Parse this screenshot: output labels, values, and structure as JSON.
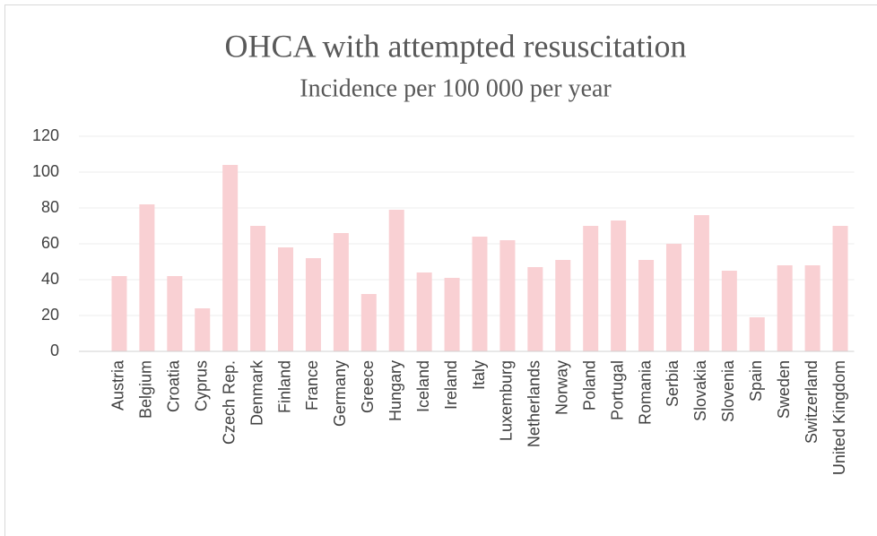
{
  "chart_data": {
    "type": "bar",
    "title": "OHCA with attempted resuscitation",
    "subtitle": "Incidence per 100 000 per year",
    "categories": [
      "Austria",
      "Belgium",
      "Croatia",
      "Cyprus",
      "Czech Rep.",
      "Denmark",
      "Finland",
      "France",
      "Germany",
      "Greece",
      "Hungary",
      "Iceland",
      "Ireland",
      "Italy",
      "Luxemburg",
      "Netherlands",
      "Norway",
      "Poland",
      "Portugal",
      "Romania",
      "Serbia",
      "Slovakia",
      "Slovenia",
      "Spain",
      "Sweden",
      "Switzerland",
      "United Kingdom"
    ],
    "values": [
      42,
      82,
      42,
      24,
      104,
      70,
      58,
      52,
      66,
      32,
      79,
      44,
      41,
      64,
      62,
      47,
      51,
      70,
      73,
      51,
      60,
      76,
      45,
      19,
      48,
      48,
      70
    ],
    "color": "#f9d0d3",
    "ylim": [
      0,
      120
    ],
    "yticks": [
      0,
      20,
      40,
      60,
      80,
      100,
      120
    ],
    "grid": true
  }
}
